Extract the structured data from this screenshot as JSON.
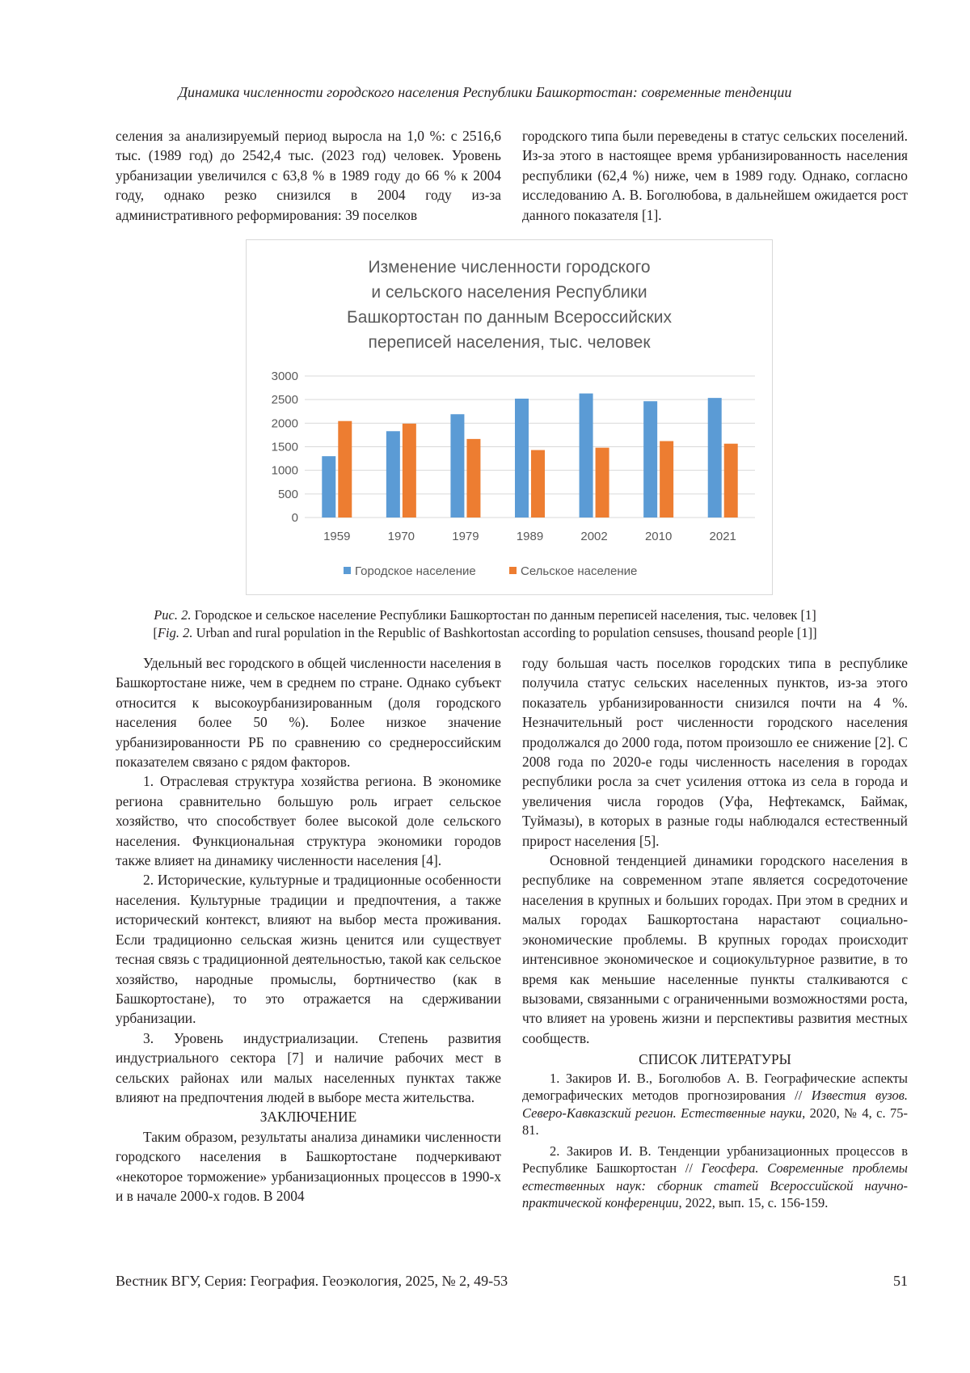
{
  "running_header": "Динамика численности городского населения Республики Башкортостан: современные тенденции",
  "top": {
    "left": "селения за анализируемый период выросла на 1,0 %: с 2516,6 тыс. (1989 год) до 2542,4 тыс. (2023 год) человек. Уровень урбанизации увеличился с 63,8 % в 1989 году до 66 % к 2004 году, однако резко снизился в 2004 году из-за административного реформирования: 39 поселков",
    "right": "городского типа были переведены в статус сельских поселений. Из-за этого в настоящее время урбанизированность населения республики (62,4 %) ниже, чем в 1989 году. Однако, согласно исследованию А. В. Боголюбова, в дальнейшем ожидается рост данного показателя [1]."
  },
  "chart_data": {
    "type": "bar",
    "title": "Изменение численности городского и сельского населения Республики Башкортостан по данным Всероссийских переписей населения, тыс. человек",
    "title_lines": [
      "Изменение численности городского",
      "и сельского населения Республики",
      "Башкортостан по данным Всероссийских",
      "переписей населения, тыс. человек"
    ],
    "categories": [
      "1959",
      "1970",
      "1979",
      "1989",
      "2002",
      "2010",
      "2021"
    ],
    "series": [
      {
        "name": "Городское население",
        "color": "#5b9bd5",
        "values": [
          1300,
          1830,
          2190,
          2520,
          2630,
          2465,
          2535
        ]
      },
      {
        "name": "Сельское население",
        "color": "#ed7d31",
        "values": [
          2045,
          1990,
          1665,
          1430,
          1480,
          1620,
          1565
        ]
      }
    ],
    "yticks": [
      "0",
      "500",
      "1000",
      "1500",
      "2000",
      "2500",
      "3000"
    ],
    "ylim": [
      0,
      3000
    ],
    "grid": true,
    "legend": "bottom"
  },
  "caption": {
    "ru_label": "Рис. 2.",
    "ru_text": " Городское и сельское население Республики Башкортостан по данным переписей населения, тыс. человек [1]",
    "en_open": "[",
    "en_label": "Fig. 2.",
    "en_text": " Urban and rural population in the Republic of Bashkortostan according to population censuses, thousand people [1]]"
  },
  "body": {
    "left": [
      "Удельный вес городского в общей численности населения в Башкортостане ниже, чем в среднем по стране. Однако субъект относится к высокоурбанизированным (доля городского населения более 50 %). Более низкое значение урбанизированности РБ по сравнению со среднероссийским показателем связано с рядом факторов.",
      "1. Отраслевая структура хозяйства региона. В экономике региона сравнительно большую роль играет сельское хозяйство, что способствует более высокой доле сельского населения. Функциональная структура экономики городов также влияет на динамику численности населения [4].",
      "2. Исторические, культурные и традиционные особенности населения. Культурные традиции и предпочтения, а также исторический контекст, влияют на выбор места проживания. Если традиционно сельская жизнь ценится или существует тесная связь с традиционной деятельностью, такой как сельское хозяйство, народные промыслы, бортничество (как в Башкортостане), то это отражается на сдерживании урбанизации.",
      "3. Уровень индустриализации. Степень развития индустриального сектора [7] и наличие рабочих мест в сельских районах или малых населенных пунктах также влияют на предпочтения людей в выборе места жительства."
    ],
    "conclusion_heading": "ЗАКЛЮЧЕНИЕ",
    "conclusion": "Таким образом, результаты анализа динамики численности городского населения в Башкортостане подчеркивают «некоторое торможение» урбанизационных процессов в 1990-х и в начале 2000-х годов. В 2004",
    "right_cont": "году большая часть поселков городских типа в республике получила статус сельских населенных пунктов, из-за этого показатель урбанизированности снизился почти на 4 %. Незначительный рост численности городского населения продолжался до 2000 года, потом произошло ее снижение [2]. С 2008 года по 2020-е годы численность населения в городах республики росла за счет усиления оттока из села в города и увеличения числа городов (Уфа, Нефтекамск, Баймак, Туймазы), в которых в разные годы наблюдался естественный прирост населения [5].",
    "right_p2": "Основной тенденцией динамики городского населения в республике на современном этапе является сосредоточение населения в крупных и больших городах. При этом в средних и малых городах Башкортостана нарастают социально-экономические проблемы. В крупных городах происходит интенсивное экономическое и социокультурное развитие, в то время как меньшие населенные пункты сталкиваются с вызовами, связанными с ограниченными возможностями роста, что влияет на уровень жизни и перспективы развития местных сообществ."
  },
  "references": {
    "heading": "СПИСОК ЛИТЕРАТУРЫ",
    "items": [
      {
        "plain": "1. Закиров И. В., Боголюбов А. В. Географические аспекты демографических методов прогнозирования // ",
        "italic": "Известия вузов. Северо-Кавказский регион. Естественные науки,",
        "tail": " 2020, № 4, с. 75-81."
      },
      {
        "plain": "2. Закиров И. В. Тенденции урбанизационных процессов в Республике Башкортостан // ",
        "italic": "Геосфера. Современные проблемы естественных наук: сборник статей Всероссийской научно-практической конференции",
        "tail": ", 2022, вып. 15, с. 156-159."
      }
    ]
  },
  "footer": {
    "journal": "Вестник ВГУ, Серия: География. Геоэкология, 2025, № 2, 49-53",
    "page": "51"
  }
}
